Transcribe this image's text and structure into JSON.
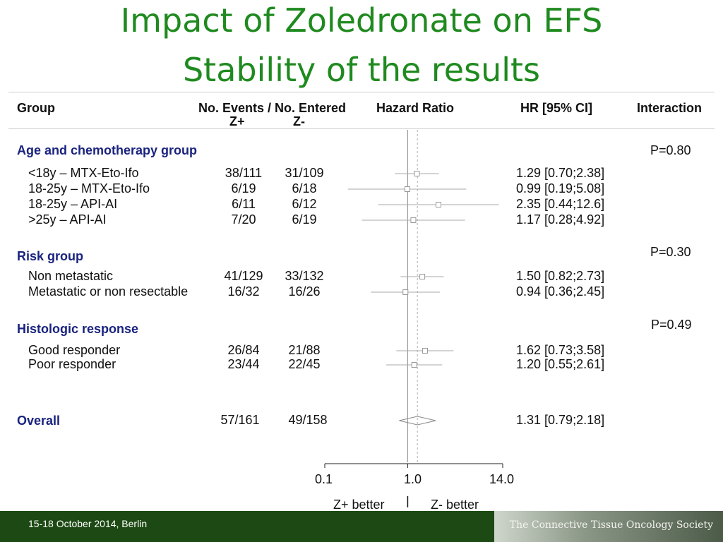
{
  "title_line1": "Impact of Zoledronate on EFS",
  "title_line2": "Stability of the results",
  "headers": {
    "group": "Group",
    "events": "No. Events / No. Entered",
    "zplus": "Z+",
    "zminus": "Z-",
    "hazard_ratio": "Hazard Ratio",
    "hr_ci": "HR [95% CI]",
    "interaction": "Interaction"
  },
  "groups": {
    "age": {
      "label": "Age and chemotherapy group",
      "p": "P=0.80"
    },
    "risk": {
      "label": "Risk group",
      "p": "P=0.30"
    },
    "histo": {
      "label": "Histologic response",
      "p": "P=0.49"
    },
    "overall": {
      "label": "Overall"
    }
  },
  "rows": [
    {
      "label": "<18y – MTX-Eto-Ifo",
      "zplus": "38/111",
      "zminus": "31/109",
      "hr_text": "1.29 [0.70;2.38]"
    },
    {
      "label": "18-25y – MTX-Eto-Ifo",
      "zplus": "6/19",
      "zminus": "6/18",
      "hr_text": "0.99 [0.19;5.08]"
    },
    {
      "label": "18-25y – API-AI",
      "zplus": "6/11",
      "zminus": "6/12",
      "hr_text": "2.35 [0.44;12.6]"
    },
    {
      "label": ">25y – API-AI",
      "zplus": "7/20",
      "zminus": "6/19",
      "hr_text": "1.17 [0.28;4.92]"
    },
    {
      "label": "Non metastatic",
      "zplus": "41/129",
      "zminus": "33/132",
      "hr_text": "1.50 [0.82;2.73]"
    },
    {
      "label": "Metastatic or non resectable",
      "zplus": "16/32",
      "zminus": "16/26",
      "hr_text": "0.94 [0.36;2.45]"
    },
    {
      "label": "Good responder",
      "zplus": "26/84",
      "zminus": "21/88",
      "hr_text": "1.62 [0.73;3.58]"
    },
    {
      "label": "Poor responder",
      "zplus": "23/44",
      "zminus": "22/45",
      "hr_text": "1.20 [0.55;2.61]"
    },
    {
      "label": "Overall",
      "zplus": "57/161",
      "zminus": "49/158",
      "hr_text": "1.31 [0.79;2.18]"
    }
  ],
  "axis": {
    "ticks": [
      "0.1",
      "1.0",
      "14.0"
    ],
    "left_label": "Z+ better",
    "right_label": "Z- better"
  },
  "footer": {
    "date": "15-18 October 2014, Berlin",
    "society": "The Connective Tissue Oncology Society"
  },
  "colors": {
    "title": "#1f8a1f",
    "group": "#1a237e",
    "footer": "#1d4a14"
  },
  "chart_data": {
    "type": "forest",
    "scale": "log",
    "xlim": [
      0.1,
      14.0
    ],
    "ticks": [
      0.1,
      1.0,
      14.0
    ],
    "reference_line": 1.0,
    "overall_line": 1.31,
    "estimates": [
      {
        "label": "<18y – MTX-Eto-Ifo",
        "hr": 1.29,
        "lo": 0.7,
        "hi": 2.38
      },
      {
        "label": "18-25y – MTX-Eto-Ifo",
        "hr": 0.99,
        "lo": 0.19,
        "hi": 5.08
      },
      {
        "label": "18-25y – API-AI",
        "hr": 2.35,
        "lo": 0.44,
        "hi": 12.6
      },
      {
        "label": ">25y – API-AI",
        "hr": 1.17,
        "lo": 0.28,
        "hi": 4.92
      },
      {
        "label": "Non metastatic",
        "hr": 1.5,
        "lo": 0.82,
        "hi": 2.73
      },
      {
        "label": "Metastatic or non resectable",
        "hr": 0.94,
        "lo": 0.36,
        "hi": 2.45
      },
      {
        "label": "Good responder",
        "hr": 1.62,
        "lo": 0.73,
        "hi": 3.58
      },
      {
        "label": "Poor responder",
        "hr": 1.2,
        "lo": 0.55,
        "hi": 2.61
      },
      {
        "label": "Overall",
        "hr": 1.31,
        "lo": 0.79,
        "hi": 2.18,
        "diamond": true
      }
    ]
  }
}
